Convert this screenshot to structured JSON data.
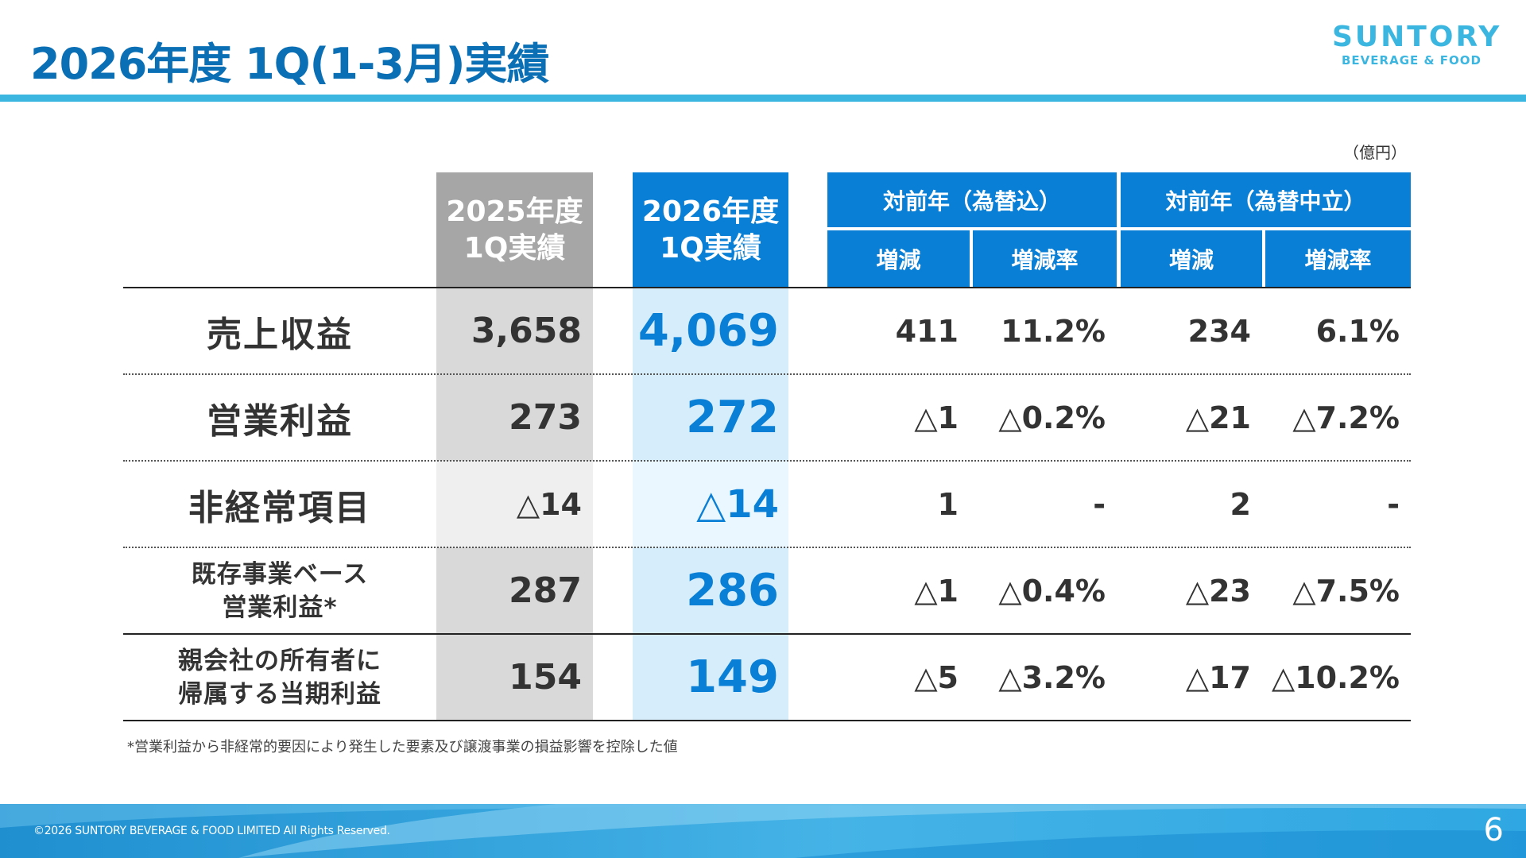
{
  "header": {
    "title": "2026年度 1Q(1-3月)実績",
    "logo_main": "SUNTORY",
    "logo_sub": "BEVERAGE & FOOD"
  },
  "unit_label": "（億円）",
  "table": {
    "col_2025": [
      "2025年度",
      "1Q実績"
    ],
    "col_2026": [
      "2026年度",
      "1Q実績"
    ],
    "group_fx_incl": "対前年（為替込）",
    "group_fx_neutral": "対前年（為替中立）",
    "sub_change": "増減",
    "sub_rate": "増減率",
    "rows": [
      {
        "label": [
          "売上収益"
        ],
        "v2025": "3,658",
        "v2026": "4,069",
        "chg": "411",
        "rate": "11.2%",
        "chg_n": "234",
        "rate_n": "6.1%"
      },
      {
        "label": [
          "営業利益"
        ],
        "v2025": "273",
        "v2026": "272",
        "chg": "△1",
        "rate": "△0.2%",
        "chg_n": "△21",
        "rate_n": "△7.2%"
      },
      {
        "label": [
          "非経常項目"
        ],
        "v2025": "△14",
        "v2026": "△14",
        "chg": "1",
        "rate": "-",
        "chg_n": "2",
        "rate_n": "-"
      },
      {
        "label": [
          "既存事業ベース",
          "営業利益*"
        ],
        "v2025": "287",
        "v2026": "286",
        "chg": "△1",
        "rate": "△0.4%",
        "chg_n": "△23",
        "rate_n": "△7.5%"
      },
      {
        "label": [
          "親会社の所有者に",
          "帰属する当期利益"
        ],
        "v2025": "154",
        "v2026": "149",
        "chg": "△5",
        "rate": "△3.2%",
        "chg_n": "△17",
        "rate_n": "△10.2%"
      }
    ]
  },
  "footnote": "*営業利益から非経常的要因により発生した要素及び譲渡事業の損益影響を控除した値",
  "footer": {
    "copyright": "©2026 SUNTORY BEVERAGE & FOOD LIMITED All Rights Reserved.",
    "page_number": "6"
  },
  "colors": {
    "title_blue": "#0a6fb5",
    "header_blue": "#0a7fd6",
    "header_gray": "#a6a6a6",
    "accent_light_blue": "#3ab6e0",
    "col2025_bg": "#d9d9d9",
    "col2026_bg": "#d6eefb"
  }
}
